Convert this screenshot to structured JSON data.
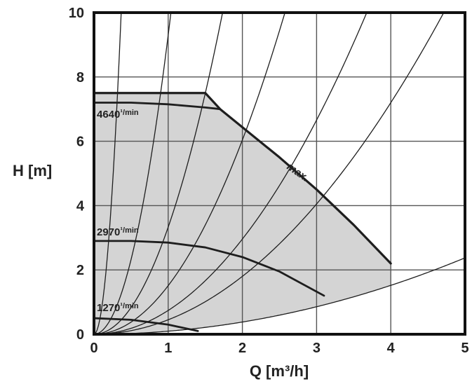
{
  "chart_data": {
    "type": "line",
    "title": "",
    "xlabel": "Q [m³/h]",
    "ylabel": "H [m]",
    "xlim": [
      0,
      5
    ],
    "ylim": [
      0,
      10
    ],
    "xticks": [
      "0",
      "1",
      "2",
      "3",
      "4",
      "5"
    ],
    "yticks": [
      "0",
      "2",
      "4",
      "6",
      "8",
      "10"
    ],
    "grid": true,
    "legend": "none",
    "colors": {
      "operating_area": "#d4d4d4",
      "curves": "#1e1e1e",
      "grid": "#555555"
    },
    "series": [
      {
        "name": "max.",
        "x": [
          0,
          1.5,
          1.7,
          2.5,
          3.0,
          3.5,
          4.0
        ],
        "y": [
          7.5,
          7.5,
          7.0,
          5.5,
          4.5,
          3.4,
          2.2
        ]
      },
      {
        "name": "4640 ¹/min",
        "x": [
          0,
          0.5,
          1.0,
          1.5,
          1.7
        ],
        "y": [
          7.2,
          7.2,
          7.15,
          7.05,
          7.0
        ]
      },
      {
        "name": "2970 ¹/min",
        "x": [
          0,
          0.5,
          1.0,
          1.5,
          2.0,
          2.5,
          3.1
        ],
        "y": [
          2.9,
          2.9,
          2.85,
          2.7,
          2.4,
          1.95,
          1.2
        ]
      },
      {
        "name": "1270 ¹/min",
        "x": [
          0,
          0.5,
          1.0,
          1.4
        ],
        "y": [
          0.5,
          0.45,
          0.3,
          0.1
        ]
      }
    ],
    "system_curves": [
      {
        "k": 74.4
      },
      {
        "k": 9.3
      },
      {
        "k": 3.33
      },
      {
        "k": 1.51
      },
      {
        "k": 0.74
      },
      {
        "k": 0.45
      },
      {
        "k": 0.095
      }
    ],
    "curve_labels": {
      "speed_high": {
        "value": "4640",
        "unit": "¹/min"
      },
      "speed_mid": {
        "value": "2970",
        "unit": "¹/min"
      },
      "speed_low": {
        "value": "1270",
        "unit": "¹/min"
      },
      "max": "max."
    }
  }
}
